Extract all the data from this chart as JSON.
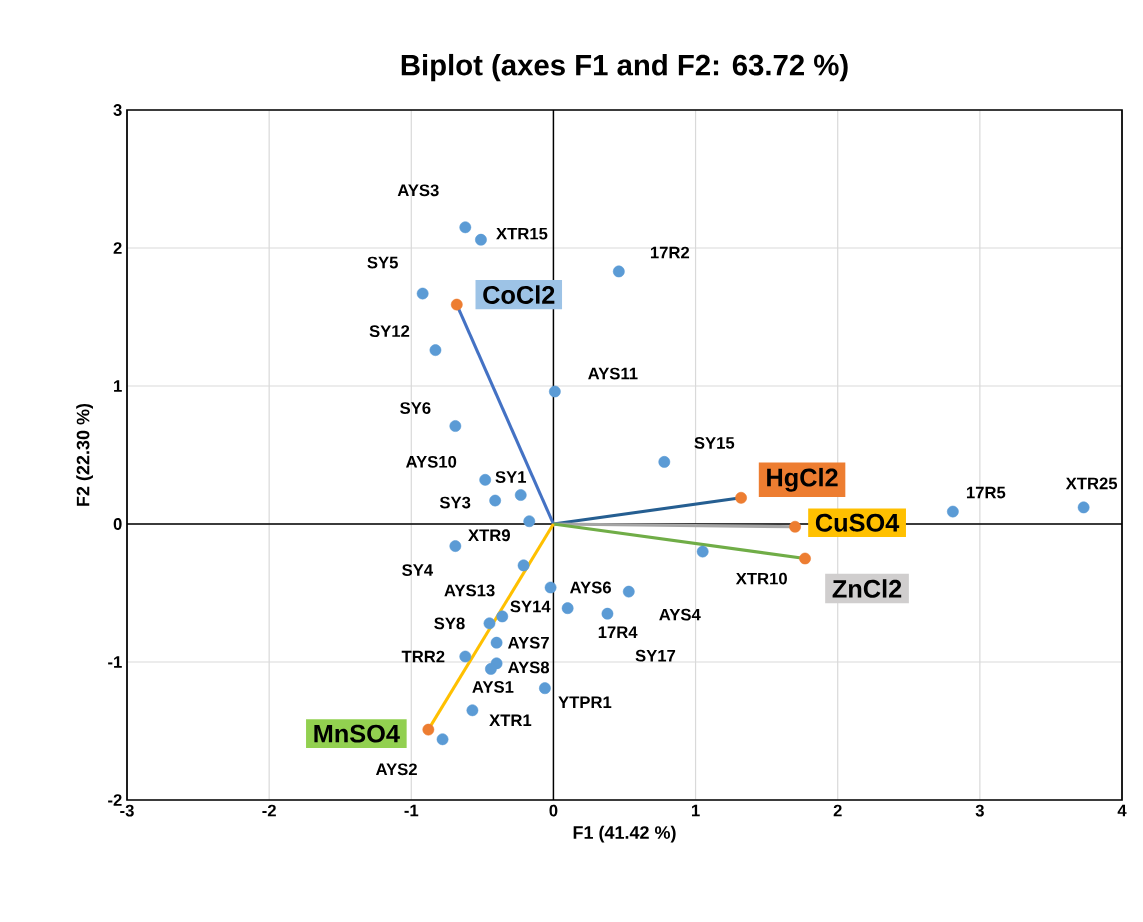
{
  "chart_data": {
    "type": "scatter",
    "title": "Biplot (axes F1 and F2: 63.72 %)",
    "xlabel": "F1 (41.42 %)",
    "ylabel": "F2 (22.30 %)",
    "xlim": [
      -3,
      4
    ],
    "ylim": [
      -2,
      3
    ],
    "xticks": [
      -3,
      -2,
      -1,
      0,
      1,
      2,
      3,
      4
    ],
    "yticks": [
      -2,
      -1,
      0,
      1,
      2,
      3
    ],
    "grid": true,
    "marker": "circle",
    "series": [
      {
        "type": "scatter",
        "color": "#5b9bd5",
        "x": [
          -0.62,
          -0.51,
          0.46,
          -0.92,
          -0.83,
          0.01,
          -0.69,
          0.78,
          -0.48,
          -0.23,
          -0.41,
          -0.17,
          -0.69,
          -0.21,
          -0.36,
          -0.45,
          -0.4,
          -0.62,
          -0.4,
          -0.44,
          -0.02,
          -0.06,
          -0.57,
          -0.78,
          0.1,
          0.38,
          0.53,
          1.05,
          2.81,
          3.73
        ],
        "values": [
          2.15,
          2.06,
          1.83,
          1.67,
          1.26,
          0.96,
          0.71,
          0.45,
          0.32,
          0.21,
          0.17,
          0.02,
          -0.16,
          -0.3,
          -0.67,
          -0.72,
          -0.86,
          -0.96,
          -1.01,
          -1.05,
          -0.46,
          -1.19,
          -1.35,
          -1.56,
          -0.61,
          -0.65,
          -0.49,
          -0.2,
          0.09,
          0.12
        ]
      },
      {
        "type": "scatter",
        "color": "#ed7d31",
        "x": [
          -0.68,
          1.32,
          1.7,
          1.77,
          -0.88
        ],
        "values": [
          1.59,
          0.19,
          -0.02,
          -0.25,
          -1.49
        ]
      },
      {
        "type": "line",
        "marker": "none",
        "name": "CoCl2",
        "color": "#4472c4",
        "x": [
          0,
          -0.68
        ],
        "values": [
          0,
          1.59
        ]
      },
      {
        "type": "line",
        "marker": "none",
        "name": "HgCl2",
        "color": "#255e91",
        "x": [
          0,
          1.32
        ],
        "values": [
          0,
          0.19
        ]
      },
      {
        "type": "line",
        "marker": "none",
        "name": "CuSO4",
        "color": "#a5a5a5",
        "x": [
          0,
          1.7
        ],
        "values": [
          0,
          -0.02
        ]
      },
      {
        "type": "line",
        "marker": "none",
        "name": "ZnCl2",
        "color": "#70ad47",
        "x": [
          0,
          1.77
        ],
        "values": [
          0,
          -0.25
        ]
      },
      {
        "type": "line",
        "marker": "none",
        "name": "MnSO4",
        "color": "#ffc000",
        "x": [
          0,
          -0.88
        ],
        "values": [
          0,
          -1.49
        ]
      }
    ],
    "annotations": [
      {
        "text": "AYS3",
        "x": -0.62,
        "y": 2.15
      },
      {
        "text": "XTR15",
        "x": -0.51,
        "y": 2.06
      },
      {
        "text": "17R2",
        "x": 0.46,
        "y": 1.83
      },
      {
        "text": "SY5",
        "x": -0.92,
        "y": 1.67
      },
      {
        "text": "SY12",
        "x": -0.83,
        "y": 1.26
      },
      {
        "text": "AYS11",
        "x": 0.01,
        "y": 0.96
      },
      {
        "text": "SY6",
        "x": -0.69,
        "y": 0.71
      },
      {
        "text": "SY15",
        "x": 0.78,
        "y": 0.45
      },
      {
        "text": "AYS10",
        "x": -0.48,
        "y": 0.32
      },
      {
        "text": "SY1",
        "x": -0.23,
        "y": 0.21
      },
      {
        "text": "SY3",
        "x": -0.41,
        "y": 0.17
      },
      {
        "text": "XTR9",
        "x": -0.17,
        "y": 0.02
      },
      {
        "text": "SY4",
        "x": -0.69,
        "y": -0.16
      },
      {
        "text": "AYS13",
        "x": -0.21,
        "y": -0.3
      },
      {
        "text": "SY14",
        "x": -0.36,
        "y": -0.67
      },
      {
        "text": "SY8",
        "x": -0.45,
        "y": -0.72
      },
      {
        "text": "AYS7",
        "x": -0.4,
        "y": -0.86
      },
      {
        "text": "TRR2",
        "x": -0.62,
        "y": -0.96
      },
      {
        "text": "AYS8",
        "x": -0.4,
        "y": -1.01
      },
      {
        "text": "AYS1",
        "x": -0.44,
        "y": -1.05
      },
      {
        "text": "AYS6",
        "x": -0.02,
        "y": -0.46
      },
      {
        "text": "YTPR1",
        "x": -0.06,
        "y": -1.19
      },
      {
        "text": "XTR1",
        "x": -0.57,
        "y": -1.35
      },
      {
        "text": "AYS2",
        "x": -0.78,
        "y": -1.56
      },
      {
        "text": "17R4",
        "x": 0.1,
        "y": -0.61
      },
      {
        "text": "SY17",
        "x": 0.38,
        "y": -0.65
      },
      {
        "text": "AYS4",
        "x": 0.53,
        "y": -0.49
      },
      {
        "text": "XTR10",
        "x": 1.05,
        "y": -0.2
      },
      {
        "text": "17R5",
        "x": 2.81,
        "y": 0.09
      },
      {
        "text": "XTR25",
        "x": 3.73,
        "y": 0.12
      }
    ]
  }
}
